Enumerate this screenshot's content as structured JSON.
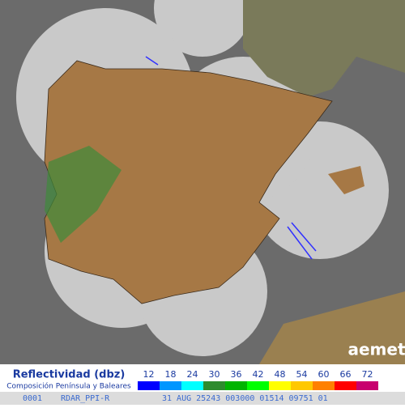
{
  "legend": {
    "title": "Reflectividad (dbz)",
    "subtitle": "Composición Península y Baleares",
    "steps": [
      {
        "value": 12,
        "color": "#0000ff"
      },
      {
        "value": 18,
        "color": "#0096ff"
      },
      {
        "value": 24,
        "color": "#00ffff"
      },
      {
        "value": 30,
        "color": "#2e8b2e"
      },
      {
        "value": 36,
        "color": "#00b400"
      },
      {
        "value": 42,
        "color": "#00ff00"
      },
      {
        "value": 48,
        "color": "#ffff00"
      },
      {
        "value": 54,
        "color": "#ffc800"
      },
      {
        "value": 60,
        "color": "#ff8000"
      },
      {
        "value": 66,
        "color": "#ff0000"
      },
      {
        "value": 72,
        "color": "#c8006e"
      }
    ]
  },
  "logo": "aemet",
  "footer": [
    "0001",
    "RDAR_PPI-R",
    "31 AUG 25243 003000 01514 09751 01"
  ]
}
